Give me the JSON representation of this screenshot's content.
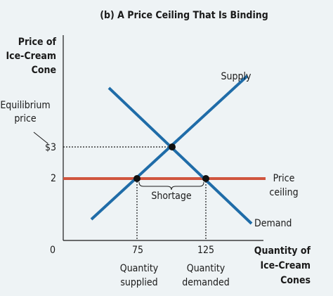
{
  "title": "(b) A Price Ceiling That Is Binding",
  "y_axis": {
    "label": [
      "Price of",
      "Ice-Cream",
      "Cone"
    ],
    "ticks": [
      "$3",
      "2"
    ]
  },
  "x_axis": {
    "label": [
      "Quantity of",
      "Ice-Cream",
      "Cones"
    ],
    "ticks": [
      "0",
      "75",
      "125"
    ]
  },
  "annotations": {
    "equilibrium_price": [
      "Equilibrium",
      "price"
    ],
    "supply": "Supply",
    "demand": "Demand",
    "price_ceiling": [
      "Price",
      "ceiling"
    ],
    "shortage": "Shortage",
    "quantity_supplied": [
      "Quantity",
      "supplied"
    ],
    "quantity_demanded": [
      "Quantity",
      "demanded"
    ]
  }
}
